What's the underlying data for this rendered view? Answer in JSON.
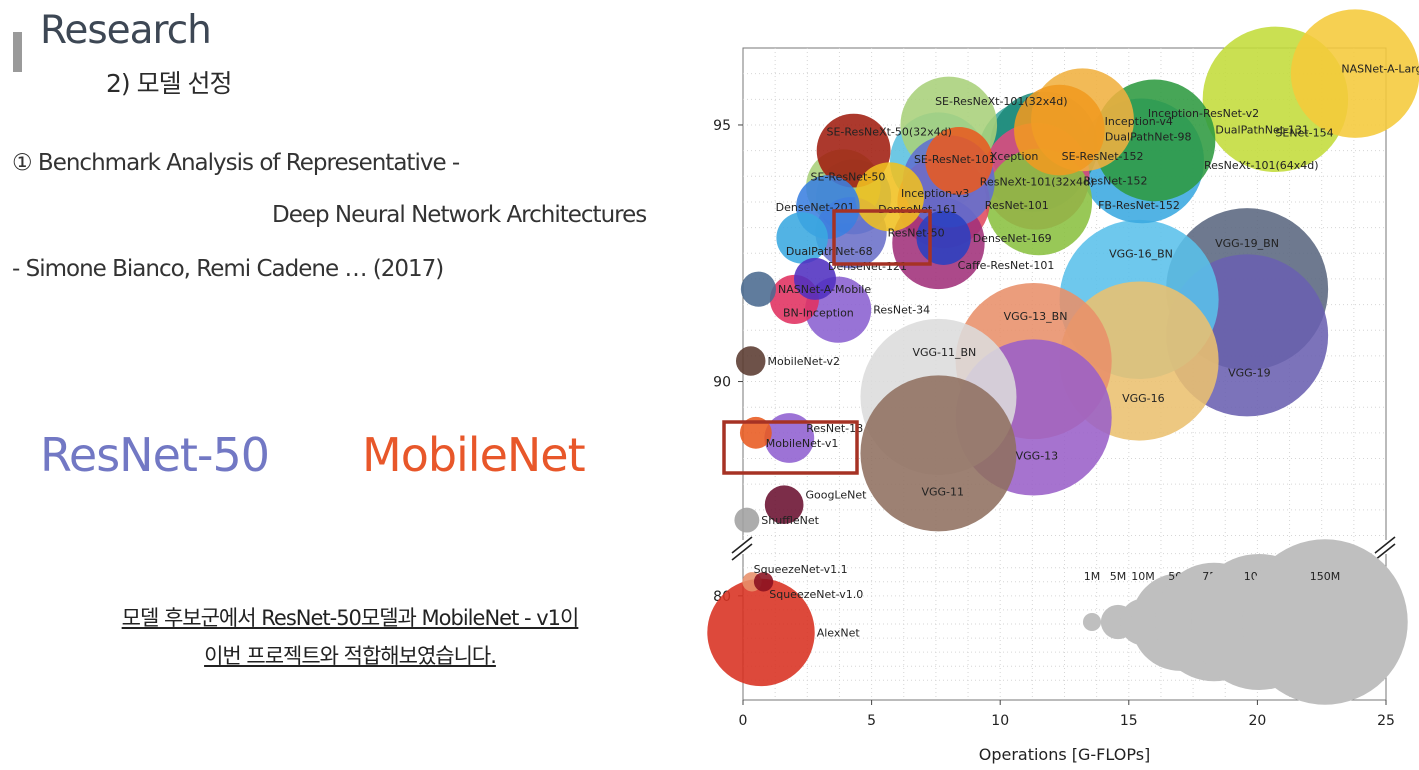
{
  "slide": {
    "title": "Research",
    "subtitle": "2) 모델 선정",
    "benchmark_line1": "① Benchmark Analysis  of Representative       -",
    "benchmark_line2": "Deep Neural Network Architectures",
    "authors": "- Simone Bianco, Remi Cadene … (2017)",
    "models": [
      "ResNet-50",
      "MobileNet"
    ],
    "conclusion_line1": "모델 후보군에서 ResNet-50모델과 MobileNet  - v1이",
    "conclusion_line2": "이번 프로젝트와 적합해보였습니다.",
    "colors": {
      "title": "#3d4754",
      "resnet": "#7278c4",
      "mobilenet": "#e8572a",
      "highlight_box": "#a63224"
    }
  },
  "chart_data": {
    "type": "scatter",
    "xlabel": "Operations [G-FLOPs]",
    "ylabel": "",
    "xlim": [
      0,
      25
    ],
    "x_ticks": [
      0,
      5,
      10,
      15,
      20,
      25
    ],
    "y_ticks": [
      80,
      90,
      95
    ],
    "grid": true,
    "y_axis_break": true,
    "size_legend": {
      "placement": "bottom-right",
      "labels": [
        "1M",
        "5M",
        "10M",
        "50M",
        "75M",
        "100M",
        "150M"
      ],
      "values_millions": [
        1,
        5,
        10,
        50,
        75,
        100,
        150
      ]
    },
    "highlighted": [
      "ResNet-50",
      "MobileNet-v1"
    ],
    "points": [
      {
        "name": "NASNet-A-Large",
        "x": 23.8,
        "y": 96.0,
        "params_m": 88.9,
        "color": "#f5c93a"
      },
      {
        "name": "SENet-154",
        "x": 20.7,
        "y": 95.5,
        "params_m": 115,
        "color": "#c3dc3a"
      },
      {
        "name": "Inception-ResNet-v2",
        "x": 13.2,
        "y": 95.1,
        "params_m": 55.8,
        "color": "#f0b040"
      },
      {
        "name": "Inception-v4",
        "x": 12.3,
        "y": 94.9,
        "params_m": 42.7,
        "color": "#f09a20"
      },
      {
        "name": "DualPathNet-131",
        "x": 16.0,
        "y": 94.7,
        "params_m": 79.3,
        "color": "#2e9a40"
      },
      {
        "name": "DualPathNet-98",
        "x": 11.7,
        "y": 94.6,
        "params_m": 61.6,
        "color": "#1e8a7a"
      },
      {
        "name": "SE-ResNeXt-101(32x4d)",
        "x": 8.0,
        "y": 95.0,
        "params_m": 48.9,
        "color": "#a8d07a"
      },
      {
        "name": "SE-ResNeXt-50(32x4d)",
        "x": 4.3,
        "y": 94.5,
        "params_m": 27.6,
        "color": "#a01e10"
      },
      {
        "name": "SE-ResNet-152",
        "x": 11.3,
        "y": 94.4,
        "params_m": 66.8,
        "color": "#40a8a0"
      },
      {
        "name": "ResNeXt-101(64x4d)",
        "x": 15.5,
        "y": 94.3,
        "params_m": 83.5,
        "color": "#3aa8e0"
      },
      {
        "name": "Xception",
        "x": 8.4,
        "y": 94.3,
        "params_m": 22.9,
        "color": "#e85a20"
      },
      {
        "name": "SE-ResNet-101",
        "x": 7.6,
        "y": 94.3,
        "params_m": 49.3,
        "color": "#5ac0e0"
      },
      {
        "name": "ResNet-152",
        "x": 11.4,
        "y": 94.0,
        "params_m": 60.2,
        "color": "#e04a80"
      },
      {
        "name": "ResNeXt-101(32x4d)",
        "x": 8.0,
        "y": 93.9,
        "params_m": 44.2,
        "color": "#6070d0"
      },
      {
        "name": "SE-ResNet-50",
        "x": 3.9,
        "y": 93.8,
        "params_m": 28.1,
        "color": "#a8d07a"
      },
      {
        "name": "Inception-v3",
        "x": 5.7,
        "y": 93.6,
        "params_m": 23.8,
        "color": "#f0c020"
      },
      {
        "name": "ResNet-101",
        "x": 7.8,
        "y": 93.5,
        "params_m": 44.5,
        "color": "#e04a60"
      },
      {
        "name": "FB-ResNet-152",
        "x": 11.5,
        "y": 93.5,
        "params_m": 60.2,
        "color": "#8ac040"
      },
      {
        "name": "DenseNet-201",
        "x": 3.3,
        "y": 93.4,
        "params_m": 20.0,
        "color": "#3a80e0"
      },
      {
        "name": "DenseNet-161",
        "x": 4.3,
        "y": 93.6,
        "params_m": 28.7,
        "color": "#3a90e0"
      },
      {
        "name": "ResNet-50",
        "x": 4.2,
        "y": 92.9,
        "params_m": 25.6,
        "color": "#6a70c8"
      },
      {
        "name": "DenseNet-169",
        "x": 7.8,
        "y": 92.8,
        "params_m": 14.1,
        "color": "#2a40c0"
      },
      {
        "name": "Caffe-ResNet-101",
        "x": 7.6,
        "y": 92.7,
        "params_m": 44.5,
        "color": "#a0307a"
      },
      {
        "name": "DualPathNet-68",
        "x": 2.3,
        "y": 92.8,
        "params_m": 12.6,
        "color": "#3aa8e0"
      },
      {
        "name": "DenseNet-121",
        "x": 2.8,
        "y": 92.0,
        "params_m": 8.0,
        "color": "#5030c0"
      },
      {
        "name": "NASNet-A-Mobile",
        "x": 0.6,
        "y": 91.8,
        "params_m": 5.3,
        "color": "#4a6a90"
      },
      {
        "name": "BN-Inception",
        "x": 2.0,
        "y": 91.6,
        "params_m": 11.3,
        "color": "#e03060"
      },
      {
        "name": "ResNet-34",
        "x": 3.7,
        "y": 91.4,
        "params_m": 21.8,
        "color": "#8a60d0"
      },
      {
        "name": "MobileNet-v2",
        "x": 0.3,
        "y": 90.4,
        "params_m": 3.5,
        "color": "#5a3a30"
      },
      {
        "name": "VGG-19_BN",
        "x": 19.6,
        "y": 91.8,
        "params_m": 143.7,
        "color": "#5a6680"
      },
      {
        "name": "VGG-16_BN",
        "x": 15.4,
        "y": 91.6,
        "params_m": 138.4,
        "color": "#5ac0ea"
      },
      {
        "name": "VGG-19",
        "x": 19.6,
        "y": 90.9,
        "params_m": 143.7,
        "color": "#6a60b0"
      },
      {
        "name": "VGG-16",
        "x": 15.4,
        "y": 90.4,
        "params_m": 138.4,
        "color": "#eac070"
      },
      {
        "name": "VGG-13_BN",
        "x": 11.3,
        "y": 90.4,
        "params_m": 133.1,
        "color": "#e8906a"
      },
      {
        "name": "VGG-11_BN",
        "x": 7.6,
        "y": 89.7,
        "params_m": 132.9,
        "color": "#dcdcdc"
      },
      {
        "name": "VGG-13",
        "x": 11.3,
        "y": 89.3,
        "params_m": 133.0,
        "color": "#9a60c8"
      },
      {
        "name": "VGG-11",
        "x": 7.6,
        "y": 88.6,
        "params_m": 132.9,
        "color": "#907060"
      },
      {
        "name": "ResNet-18",
        "x": 1.8,
        "y": 88.9,
        "params_m": 11.7,
        "color": "#9060d0"
      },
      {
        "name": "MobileNet-v1",
        "x": 0.5,
        "y": 89.0,
        "params_m": 4.2,
        "color": "#e85a20"
      },
      {
        "name": "GoogLeNet",
        "x": 1.6,
        "y": 87.6,
        "params_m": 6.6,
        "color": "#6a1030"
      },
      {
        "name": "ShuffleNet",
        "x": 0.15,
        "y": 87.3,
        "params_m": 2.3,
        "color": "#a0a0a0"
      },
      {
        "name": "SqueezeNet-v1.1",
        "x": 0.35,
        "y": 80.5,
        "params_m": 1.2,
        "color": "#e8906a"
      },
      {
        "name": "SqueezeNet-v1.0",
        "x": 0.8,
        "y": 80.5,
        "params_m": 1.2,
        "color": "#8a1020"
      },
      {
        "name": "AlexNet",
        "x": 0.7,
        "y": 78.7,
        "params_m": 61.1,
        "color": "#d83020"
      }
    ]
  }
}
